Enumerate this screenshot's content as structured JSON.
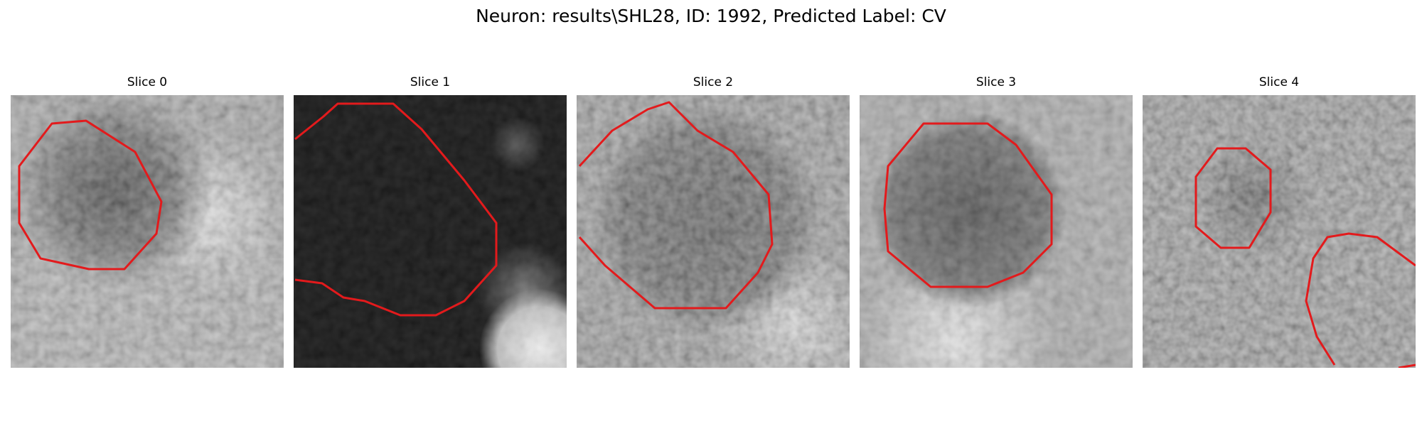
{
  "figure": {
    "title": "Neuron: results\\SHL28, ID: 1992, Predicted Label: CV"
  },
  "panels": [
    {
      "title": "Slice 0"
    },
    {
      "title": "Slice 1"
    },
    {
      "title": "Slice 2"
    },
    {
      "title": "Slice 3"
    },
    {
      "title": "Slice 4"
    }
  ],
  "colors": {
    "contour": "#e31a1c",
    "colormap": "gray"
  }
}
